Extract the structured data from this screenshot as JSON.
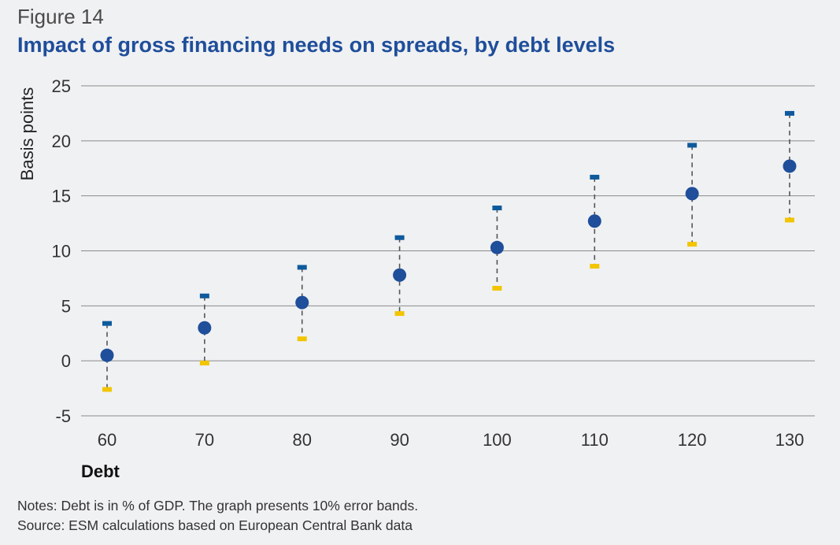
{
  "figure_label": "Figure 14",
  "title": "Impact of gross financing needs on spreads, by debt levels",
  "notes": "Notes: Debt is in % of GDP. The graph presents 10% error bands.",
  "source": "Source: ESM calculations based on European Central Bank data",
  "colors": {
    "point": "#1f4e9a",
    "upper_band": "#0e5a9c",
    "lower_band": "#f2c500",
    "connector": "#555555",
    "grid": "#8a8a8a",
    "title": "#1f4e9a"
  },
  "chart_data": {
    "type": "scatter",
    "xlabel": "Debt",
    "ylabel": "Basis points",
    "ylim": [
      -5,
      25
    ],
    "yticks": [
      -5,
      0,
      5,
      10,
      15,
      20,
      25
    ],
    "grid": "horizontal",
    "x": [
      60,
      70,
      80,
      90,
      100,
      110,
      120,
      130
    ],
    "series": [
      {
        "values": [
          0.5,
          3.0,
          5.3,
          7.8,
          10.3,
          12.7,
          15.2,
          17.7
        ]
      }
    ],
    "error_bands": {
      "upper": [
        3.4,
        5.9,
        8.5,
        11.2,
        13.9,
        16.7,
        19.6,
        22.5
      ],
      "lower": [
        -2.6,
        -0.2,
        2.0,
        4.3,
        6.6,
        8.6,
        10.6,
        12.8
      ]
    }
  }
}
